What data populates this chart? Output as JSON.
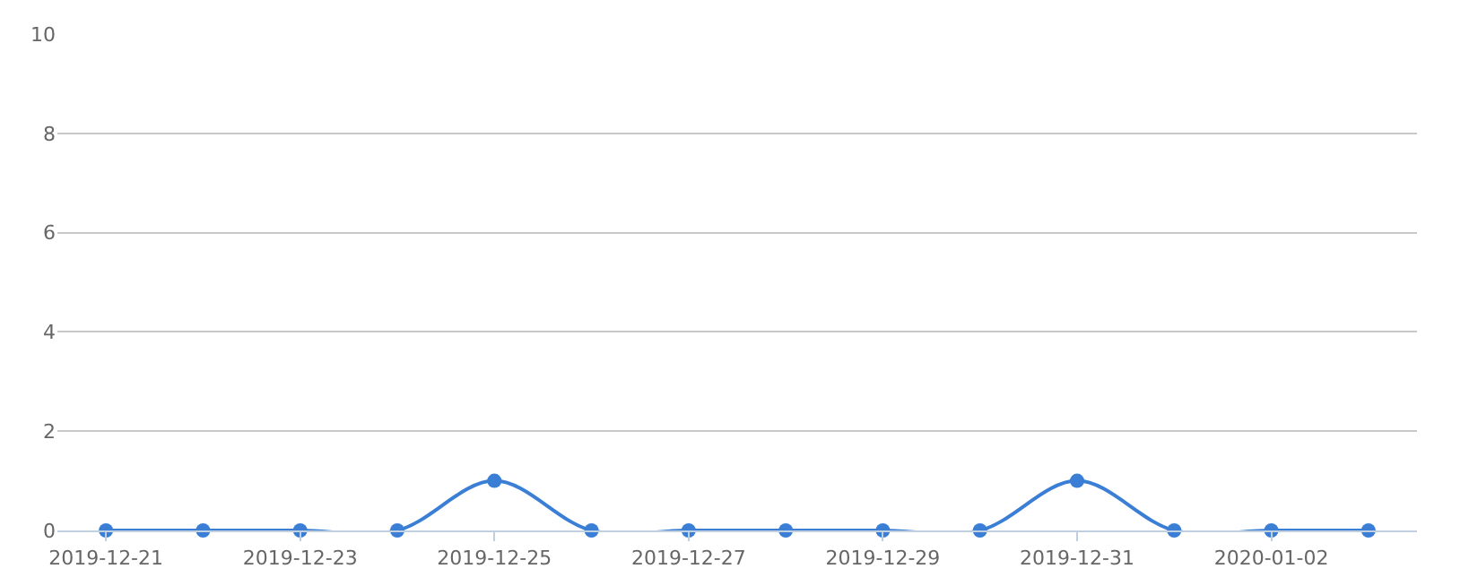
{
  "chart_data": {
    "type": "line",
    "x": [
      "2019-12-21",
      "2019-12-22",
      "2019-12-23",
      "2019-12-24",
      "2019-12-25",
      "2019-12-26",
      "2019-12-27",
      "2019-12-28",
      "2019-12-29",
      "2019-12-30",
      "2019-12-31",
      "2020-01-01",
      "2020-01-02",
      "2020-01-03"
    ],
    "series": [
      {
        "color": "#3a7fd5",
        "values": [
          0,
          0,
          0,
          0,
          1,
          0,
          0,
          0,
          0,
          0,
          1,
          0,
          0,
          0
        ]
      }
    ],
    "xlim": [
      "2019-12-20T12:00",
      "2020-01-03T12:00"
    ],
    "xticks": [
      {
        "value": "2019-12-21",
        "label": "2019-12-21"
      },
      {
        "value": "2019-12-23",
        "label": "2019-12-23"
      },
      {
        "value": "2019-12-25",
        "label": "2019-12-25"
      },
      {
        "value": "2019-12-27",
        "label": "2019-12-27"
      },
      {
        "value": "2019-12-29",
        "label": "2019-12-29"
      },
      {
        "value": "2019-12-31",
        "label": "2019-12-31"
      },
      {
        "value": "2020-01-02",
        "label": "2020-01-02"
      }
    ],
    "ylim": [
      0,
      10
    ],
    "yticks": [
      0,
      2,
      4,
      6,
      8,
      10
    ],
    "grid": "y",
    "marker": "circle",
    "line_style": "solid",
    "legend": false
  }
}
